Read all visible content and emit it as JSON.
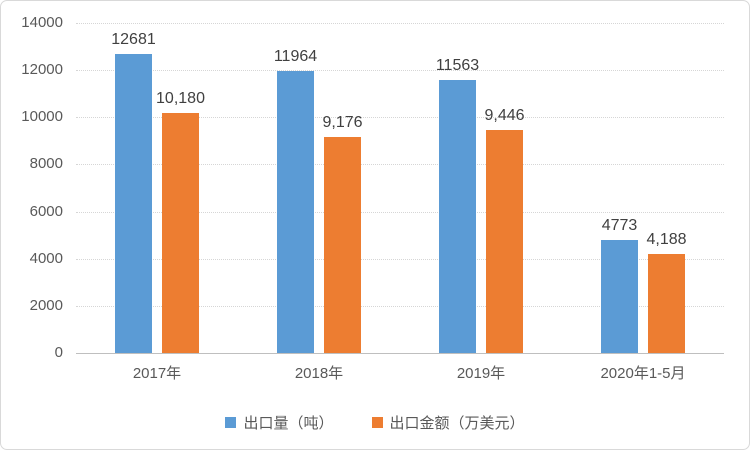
{
  "chart_data": {
    "type": "bar",
    "title": "",
    "categories": [
      "2017年",
      "2018年",
      "2019年",
      "2020年1-5月"
    ],
    "series": [
      {
        "name": "出口量（吨）",
        "color": "#5b9bd5",
        "values": [
          12681,
          11964,
          11563,
          4773
        ],
        "labels": [
          "12681",
          "11964",
          "11563",
          "4773"
        ]
      },
      {
        "name": "出口金额（万美元）",
        "color": "#ed7d31",
        "values": [
          10180,
          9176,
          9446,
          4188
        ],
        "labels": [
          "10,180",
          "9,176",
          "9,446",
          "4,188"
        ]
      }
    ],
    "xlabel": "",
    "ylabel": "",
    "ylim": [
      0,
      14000
    ],
    "y_ticks": [
      0,
      2000,
      4000,
      6000,
      8000,
      10000,
      12000,
      14000
    ],
    "grid": "horizontal-dotted",
    "legend_position": "bottom",
    "colors": {
      "grid": "#d6d6d6",
      "axis_line": "#bfbfbf",
      "tick_text": "#595959",
      "value_text": "#404040",
      "background": "#ffffff",
      "border": "#d9d9d9"
    }
  }
}
